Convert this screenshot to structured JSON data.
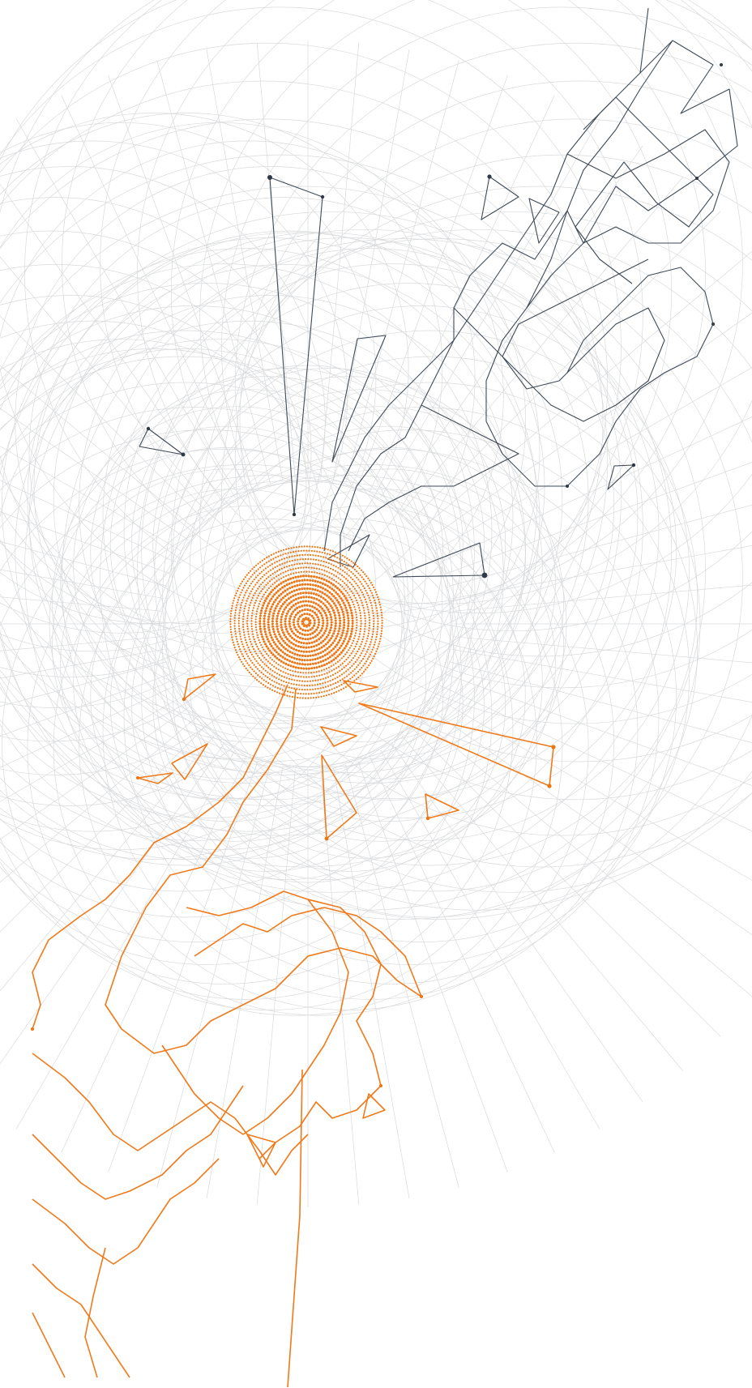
{
  "artwork": {
    "colors": {
      "background": "#ffffff",
      "grid": "#d9dadc",
      "dark_hand": "#3f4a56",
      "orange_hand": "#f07a1a",
      "core": "#ee7410"
    }
  }
}
